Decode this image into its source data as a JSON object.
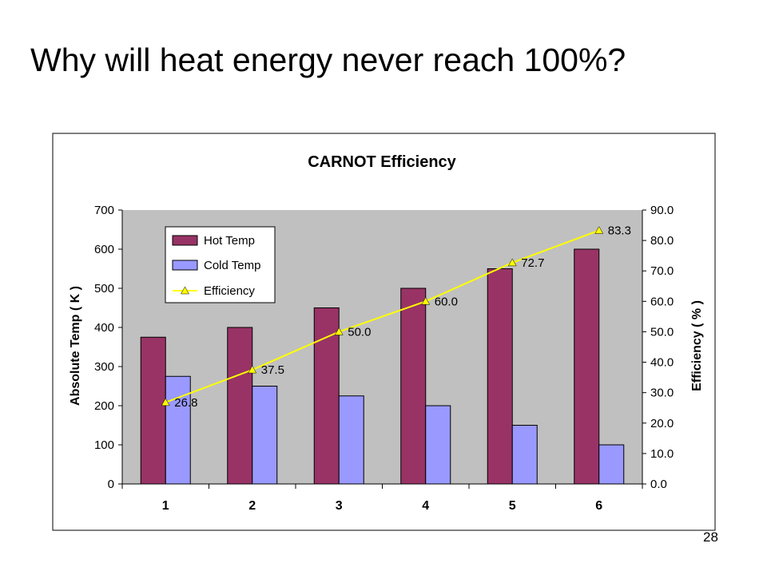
{
  "slide": {
    "title": "Why will heat energy never reach 100%?",
    "page_number": "28"
  },
  "colors": {
    "plot_background": "#c0c0c0",
    "hot_bar": "#993366",
    "cold_bar": "#9999ff",
    "efficiency_line": "#ffff00"
  },
  "chart_data": {
    "type": "bar",
    "title": "CARNOT Efficiency",
    "categories": [
      "1",
      "2",
      "3",
      "4",
      "5",
      "6"
    ],
    "ylabel": "Absolute Temp ( K )",
    "y2label": "Efficiency ( % )",
    "ylim": [
      0,
      700
    ],
    "y2lim": [
      0,
      90
    ],
    "yticks": [
      "0",
      "100",
      "200",
      "300",
      "400",
      "500",
      "600",
      "700"
    ],
    "y2ticks": [
      "0.0",
      "10.0",
      "20.0",
      "30.0",
      "40.0",
      "50.0",
      "60.0",
      "70.0",
      "80.0",
      "90.0"
    ],
    "grid": false,
    "legend_position": "top-left",
    "series": [
      {
        "name": "Hot Temp",
        "type": "bar",
        "axis": "left",
        "values": [
          375,
          400,
          450,
          500,
          550,
          600
        ]
      },
      {
        "name": "Cold Temp",
        "type": "bar",
        "axis": "left",
        "values": [
          275,
          250,
          225,
          200,
          150,
          100
        ]
      },
      {
        "name": "Efficiency",
        "type": "line",
        "axis": "right",
        "marker": "triangle",
        "values": [
          26.8,
          37.5,
          50.0,
          60.0,
          72.7,
          83.3
        ],
        "labels": [
          "26.8",
          "37.5",
          "50.0",
          "60.0",
          "72.7",
          "83.3"
        ]
      }
    ]
  }
}
